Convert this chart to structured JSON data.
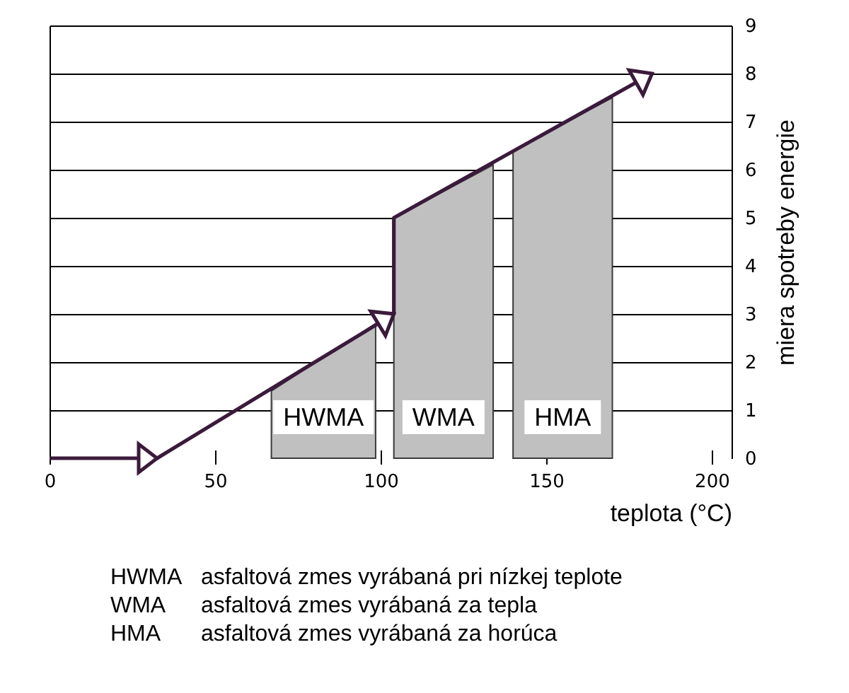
{
  "chart_data": {
    "type": "line",
    "xlabel": "teplota (°C)",
    "ylabel": "miera spotreby energie",
    "xlim": [
      0,
      206
    ],
    "ylim": [
      0,
      9
    ],
    "xticks": [
      0,
      50,
      100,
      150,
      200
    ],
    "yticks": [
      0,
      1,
      2,
      3,
      4,
      5,
      6,
      7,
      8,
      9
    ],
    "grid": "y",
    "series": [
      {
        "color": "#3b1a3b",
        "x": [
          0,
          32.5,
          104,
          104,
          182
        ],
        "values": [
          0,
          0,
          3,
          5,
          8
        ]
      },
      {
        "name": "HWMA",
        "type": "area",
        "color": "#c0c0c0",
        "x": [
          67,
          98.5
        ],
        "values": [
          1.4,
          2.8
        ]
      },
      {
        "name": "WMA",
        "type": "area",
        "color": "#c0c0c0",
        "x": [
          104,
          134
        ],
        "values": [
          5,
          6.1
        ]
      },
      {
        "name": "HMA",
        "type": "area",
        "color": "#c0c0c0",
        "x": [
          140,
          170
        ],
        "values": [
          6.4,
          7.5
        ]
      }
    ],
    "annotations": [
      "HWMA  asfaltová zmes vyrábaná pri nízkej teplote",
      "WMA     asfaltová zmes vyrábaná za tepla",
      "HMA      asfaltová zmes vyrábaná za horúca"
    ]
  }
}
